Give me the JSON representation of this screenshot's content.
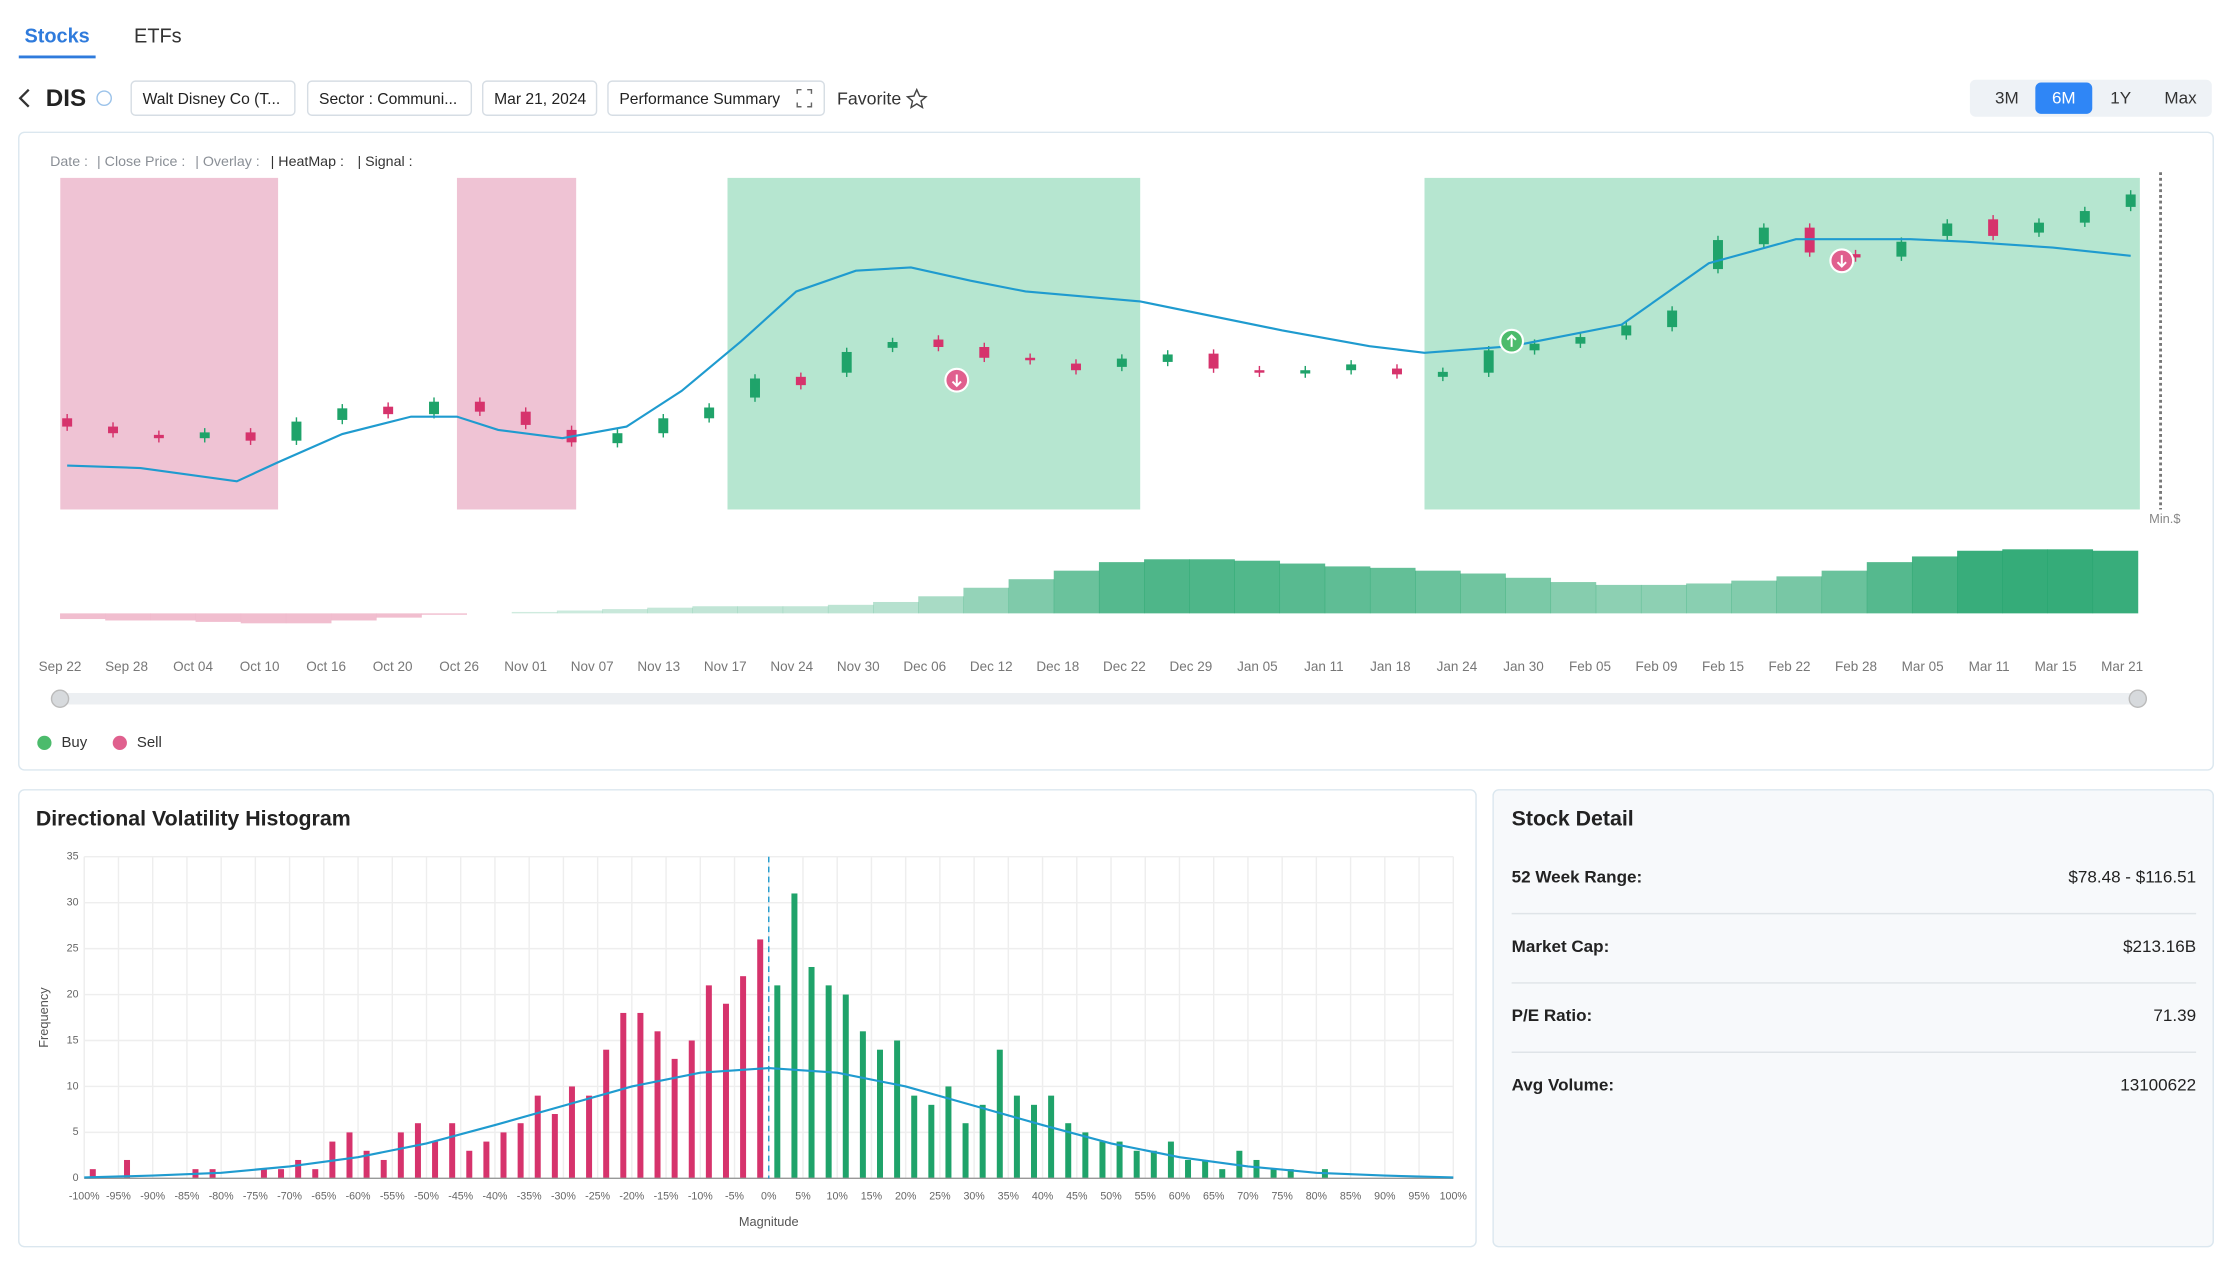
{
  "tabs": [
    "Stocks",
    "ETFs"
  ],
  "ticker": "DIS",
  "chips": [
    "Walt Disney Co (T...",
    "Sector : Communi...",
    "Mar 21, 2024",
    "Performance Summary"
  ],
  "favorite": "Favorite",
  "ranges": [
    "3M",
    "6M",
    "1Y",
    "Max"
  ],
  "active_range": 1,
  "chart_data": [
    {
      "type": "candlestick",
      "info_labels": [
        "Date :",
        "| Close Price :",
        "| Overlay :",
        "| HeatMap :",
        "| Signal :"
      ],
      "min_label": "Min.$",
      "date_labels": [
        "Sep 22",
        "Sep 28",
        "Oct 04",
        "Oct 10",
        "Oct 16",
        "Oct 20",
        "Oct 26",
        "Nov 01",
        "Nov 07",
        "Nov 13",
        "Nov 17",
        "Nov 24",
        "Nov 30",
        "Dec 06",
        "Dec 12",
        "Dec 18",
        "Dec 22",
        "Dec 29",
        "Jan 05",
        "Jan 11",
        "Jan 18",
        "Jan 24",
        "Jan 30",
        "Feb 05",
        "Feb 09",
        "Feb 15",
        "Feb 22",
        "Feb 28",
        "Mar 05",
        "Mar 11",
        "Mar 15",
        "Mar 21"
      ],
      "open": [
        86.0,
        85.0,
        84.0,
        83.6,
        84.3,
        83.3,
        85.8,
        87.4,
        86.5,
        88.0,
        86.8,
        84.6,
        83.0,
        84.2,
        86.0,
        88.5,
        91.0,
        91.5,
        94.5,
        95.5,
        94.6,
        93.3,
        92.6,
        92.2,
        92.8,
        93.8,
        91.8,
        91.4,
        91.8,
        92.0,
        91.0,
        91.5,
        94.2,
        95.0,
        96.0,
        97.0,
        104.0,
        107.0,
        109.0,
        105.8,
        105.5,
        108.0,
        110.0,
        108.4,
        109.6,
        111.5
      ],
      "close": [
        85.0,
        84.2,
        83.6,
        84.3,
        83.3,
        85.6,
        87.2,
        86.5,
        88.0,
        86.8,
        85.2,
        83.1,
        84.2,
        86.0,
        87.3,
        90.8,
        90.0,
        94.0,
        95.2,
        94.6,
        93.3,
        93.0,
        91.8,
        93.2,
        93.7,
        92.0,
        91.5,
        91.8,
        92.5,
        91.3,
        91.6,
        94.2,
        95.0,
        95.8,
        97.2,
        99.0,
        107.5,
        109.0,
        106.0,
        105.4,
        107.3,
        109.5,
        108.0,
        109.6,
        111.0,
        113.0
      ],
      "up_color": "#1fa36a",
      "down_color": "#d6336c",
      "ylim": [
        75,
        115
      ],
      "moving_average": {
        "color": "#1f9bcf",
        "x": [
          0,
          1.6,
          3.7,
          4.6,
          6,
          7.5,
          8.5,
          9.4,
          10.8,
          12.2,
          13.4,
          14.7,
          15.9,
          17.2,
          18.4,
          19.7,
          20.9,
          23.4,
          26.5,
          28.4,
          29.6,
          31.5,
          33.9,
          35.8,
          37.7,
          40.2,
          41.4,
          43.3,
          45
        ],
        "values": [
          80.3,
          80.0,
          78.4,
          80.7,
          84.1,
          86.2,
          86.2,
          84.6,
          83.6,
          85.0,
          89.3,
          95.3,
          101.3,
          103.8,
          104.2,
          102.6,
          101.3,
          100.1,
          96.6,
          94.7,
          93.9,
          94.7,
          97.3,
          104.7,
          107.6,
          107.6,
          107.3,
          106.6,
          105.6
        ]
      },
      "heatmap": [
        {
          "from": -0.15,
          "to": 4.6,
          "color": "#efc3d4"
        },
        {
          "from": 8.5,
          "to": 11.1,
          "color": "#efc3d4"
        },
        {
          "from": 14.4,
          "to": 23.4,
          "color": "#b6e6d0"
        },
        {
          "from": 29.6,
          "to": 45.2,
          "color": "#b6e6d0"
        }
      ],
      "heat_strip": {
        "ylim": [
          -10,
          45
        ],
        "values": [
          -4,
          -5,
          -5,
          -6,
          -7,
          -7,
          -5,
          -3,
          -1,
          0,
          1,
          2,
          3,
          4,
          5,
          5,
          5,
          6,
          8,
          12,
          18,
          24,
          30,
          36,
          38,
          38,
          37,
          35,
          33,
          32,
          30,
          28,
          25,
          22,
          20,
          20,
          21,
          23,
          26,
          30,
          36,
          40,
          44,
          45,
          45,
          44
        ]
      },
      "legend": [
        "Buy",
        "Sell"
      ],
      "buy_color": "#4cbb6c",
      "sell_color": "#e0608e",
      "buy_signals": [
        {
          "x": 31.5,
          "y": 95.3
        }
      ],
      "sell_signals": [
        {
          "x": 19.4,
          "y": 90.6
        },
        {
          "x": 38.7,
          "y": 105.0
        }
      ]
    },
    {
      "type": "histogram",
      "title": "Directional Volatility Histogram",
      "xlabel": "Magnitude",
      "ylabel": "Frequency",
      "bins": [
        -100,
        -97.5,
        -95,
        -92.5,
        -90,
        -87.5,
        -85,
        -82.5,
        -80,
        -77.5,
        -75,
        -72.5,
        -70,
        -67.5,
        -65,
        -62.5,
        -60,
        -57.5,
        -55,
        -52.5,
        -50,
        -47.5,
        -45,
        -42.5,
        -40,
        -37.5,
        -35,
        -32.5,
        -30,
        -27.5,
        -25,
        -22.5,
        -20,
        -17.5,
        -15,
        -12.5,
        -10,
        -7.5,
        -5,
        -2.5,
        0,
        2.5,
        5,
        7.5,
        10,
        12.5,
        15,
        17.5,
        20,
        22.5,
        25,
        27.5,
        30,
        32.5,
        35,
        37.5,
        40,
        42.5,
        45,
        47.5,
        50,
        52.5,
        55,
        57.5,
        60,
        62.5,
        65,
        67.5,
        70,
        72.5,
        75,
        77.5,
        80,
        82.5,
        85,
        87.5,
        90,
        92.5,
        95,
        97.5,
        100
      ],
      "counts": [
        1,
        0,
        2,
        0,
        0,
        0,
        1,
        1,
        0,
        0,
        1,
        1,
        2,
        1,
        4,
        5,
        3,
        2,
        5,
        6,
        4,
        6,
        3,
        4,
        5,
        6,
        9,
        7,
        10,
        9,
        14,
        18,
        18,
        16,
        13,
        15,
        21,
        19,
        22,
        26,
        21,
        31,
        23,
        21,
        20,
        16,
        14,
        15,
        9,
        8,
        10,
        6,
        8,
        14,
        9,
        8,
        9,
        6,
        5,
        4,
        4,
        3,
        3,
        4,
        2,
        2,
        1,
        3,
        2,
        1,
        1,
        0,
        1,
        0,
        0,
        0,
        0,
        0,
        0,
        0
      ],
      "negative_color": "#d6336c",
      "positive_color": "#1fa36a",
      "xlim": [
        -100,
        100
      ],
      "ylim": [
        0,
        35
      ],
      "yticks": [
        0,
        5,
        10,
        15,
        20,
        25,
        30,
        35
      ],
      "xticks": [
        {
          "value": -100,
          "label": "-100%"
        },
        {
          "value": -95,
          "label": "-95%"
        },
        {
          "value": -90,
          "label": "-90%"
        },
        {
          "value": -85,
          "label": "-85%"
        },
        {
          "value": -80,
          "label": "-80%"
        },
        {
          "value": -75,
          "label": "-75%"
        },
        {
          "value": -70,
          "label": "-70%"
        },
        {
          "value": -65,
          "label": "-65%"
        },
        {
          "value": -60,
          "label": "-60%"
        },
        {
          "value": -55,
          "label": "-55%"
        },
        {
          "value": -50,
          "label": "-50%"
        },
        {
          "value": -45,
          "label": "-45%"
        },
        {
          "value": -40,
          "label": "-40%"
        },
        {
          "value": -35,
          "label": "-35%"
        },
        {
          "value": -30,
          "label": "-30%"
        },
        {
          "value": -25,
          "label": "-25%"
        },
        {
          "value": -20,
          "label": "-20%"
        },
        {
          "value": -15,
          "label": "-15%"
        },
        {
          "value": -10,
          "label": "-10%"
        },
        {
          "value": -5,
          "label": "-5%"
        },
        {
          "value": 0,
          "label": "0%"
        },
        {
          "value": 5,
          "label": "5%"
        },
        {
          "value": 10,
          "label": "10%"
        },
        {
          "value": 15,
          "label": "15%"
        },
        {
          "value": 20,
          "label": "20%"
        },
        {
          "value": 25,
          "label": "25%"
        },
        {
          "value": 30,
          "label": "30%"
        },
        {
          "value": 35,
          "label": "35%"
        },
        {
          "value": 40,
          "label": "40%"
        },
        {
          "value": 45,
          "label": "45%"
        },
        {
          "value": 50,
          "label": "50%"
        },
        {
          "value": 55,
          "label": "55%"
        },
        {
          "value": 60,
          "label": "60%"
        },
        {
          "value": 65,
          "label": "65%"
        },
        {
          "value": 70,
          "label": "70%"
        },
        {
          "value": 75,
          "label": "75%"
        },
        {
          "value": 80,
          "label": "80%"
        },
        {
          "value": 85,
          "label": "85%"
        },
        {
          "value": 90,
          "label": "90%"
        },
        {
          "value": 95,
          "label": "95%"
        },
        {
          "value": 100,
          "label": "100%"
        }
      ],
      "mean_line": 0,
      "grid": true,
      "curve": {
        "color": "#1f9bcf",
        "x": [
          -100,
          -90,
          -80,
          -70,
          -60,
          -50,
          -40,
          -30,
          -20,
          -10,
          0,
          10,
          20,
          30,
          40,
          50,
          60,
          70,
          80,
          90,
          100
        ],
        "values": [
          0.1,
          0.3,
          0.6,
          1.3,
          2.3,
          3.8,
          5.8,
          7.9,
          10.0,
          11.5,
          12.0,
          11.5,
          10.0,
          7.9,
          5.8,
          3.8,
          2.3,
          1.3,
          0.6,
          0.3,
          0.1
        ]
      }
    }
  ],
  "stock_detail": {
    "title": "Stock Detail",
    "rows": [
      [
        "52 Week Range:",
        "$78.48 - $116.51"
      ],
      [
        "Market Cap:",
        "$213.16B"
      ],
      [
        "P/E Ratio:",
        "71.39"
      ],
      [
        "Avg Volume:",
        "13100622"
      ]
    ]
  }
}
